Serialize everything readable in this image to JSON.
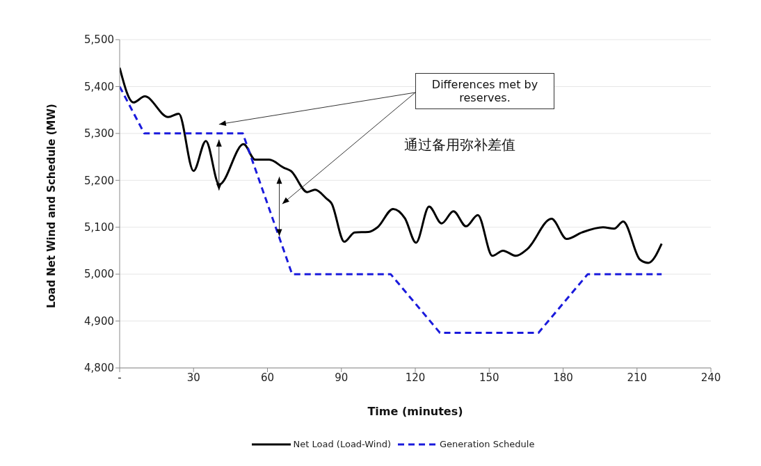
{
  "chart_data": {
    "type": "line",
    "xlabel": "Time (minutes)",
    "ylabel": "Load Net Wind and Schedule (MW)",
    "xlim": [
      0,
      240
    ],
    "xticks": [
      {
        "value": 0,
        "label": "-"
      },
      30,
      60,
      90,
      120,
      150,
      180,
      210,
      240
    ],
    "ylim": [
      4800,
      5500
    ],
    "yticks": [
      {
        "value": 4800,
        "label": "4,800"
      },
      {
        "value": 4900,
        "label": "4,900"
      },
      {
        "value": 5000,
        "label": "5,000"
      },
      {
        "value": 5100,
        "label": "5,100"
      },
      {
        "value": 5200,
        "label": "5,200"
      },
      {
        "value": 5300,
        "label": "5,300"
      },
      {
        "value": 5400,
        "label": "5,400"
      },
      {
        "value": 5500,
        "label": "5,500"
      }
    ],
    "grid": "y",
    "legend": "bottom",
    "marker": "none",
    "line_style": "solid",
    "series": [
      {
        "name": "Net Load (Load-Wind)",
        "color": "#000000",
        "x": [
          0,
          5.6,
          10.2,
          19.7,
          24,
          30,
          35,
          40.4,
          50.3,
          55,
          60.7,
          66.6,
          69.5,
          76.2,
          79.3,
          84,
          86,
          91.2,
          95.4,
          101,
          104.7,
          111,
          115.8,
          120.3,
          125.6,
          130.7,
          135.5,
          140.6,
          145.4,
          151.3,
          155.6,
          160.9,
          165.4,
          175.3,
          181.5,
          187.7,
          196.2,
          200.7,
          204.4,
          211.2,
          214.6,
          220
        ],
        "values": [
          5440,
          5366,
          5379,
          5335,
          5342,
          5220,
          5284,
          5191,
          5277,
          5244,
          5244,
          5227,
          5220,
          5175,
          5180,
          5161,
          5151,
          5069,
          5089,
          5090,
          5100,
          5139,
          5119,
          5067,
          5144,
          5108,
          5134,
          5102,
          5126,
          5039,
          5050,
          5039,
          5053,
          5118,
          5075,
          5089,
          5100,
          5097,
          5112,
          5031,
          5024,
          5065
        ]
      },
      {
        "name": "Generation Schedule",
        "color": "#1a1adc",
        "line_style": "dashed",
        "x": [
          0,
          10,
          50,
          70,
          110,
          130,
          170,
          190,
          220
        ],
        "values": [
          5400,
          5300,
          5300,
          5000,
          5000,
          4875,
          4875,
          5000,
          5000
        ]
      }
    ],
    "annotations": [
      "Differences met by reserves.",
      "通过备用弥补差值"
    ]
  }
}
